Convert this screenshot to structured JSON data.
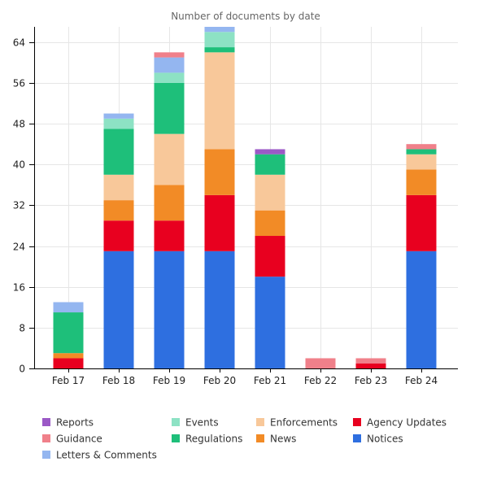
{
  "chart_data": {
    "type": "bar",
    "stacked": true,
    "title": "Number of documents by date",
    "xlabel": "",
    "ylabel": "",
    "categories": [
      "Feb 17",
      "Feb 18",
      "Feb 19",
      "Feb 20",
      "Feb 21",
      "Feb 22",
      "Feb 23",
      "Feb 24"
    ],
    "ylim": [
      0,
      67
    ],
    "yticks": [
      0,
      8,
      16,
      24,
      32,
      40,
      48,
      56,
      64
    ],
    "grid": true,
    "legend_position": "bottom",
    "series": [
      {
        "name": "Notices",
        "color": "#2e6fe0",
        "values": [
          0,
          23,
          23,
          23,
          18,
          0,
          0,
          23
        ]
      },
      {
        "name": "Agency Updates",
        "color": "#e8001f",
        "values": [
          2,
          6,
          6,
          11,
          8,
          0,
          1,
          11
        ]
      },
      {
        "name": "News",
        "color": "#f28b26",
        "values": [
          1,
          4,
          7,
          9,
          5,
          0,
          0,
          5
        ]
      },
      {
        "name": "Enforcements",
        "color": "#f8c89a",
        "values": [
          0,
          5,
          10,
          19,
          7,
          0,
          0,
          3
        ]
      },
      {
        "name": "Regulations",
        "color": "#1ebf7a",
        "values": [
          8,
          9,
          10,
          1,
          4,
          0,
          0,
          1
        ]
      },
      {
        "name": "Events",
        "color": "#8de2c4",
        "values": [
          0,
          2,
          2,
          3,
          0,
          0,
          0,
          0
        ]
      },
      {
        "name": "Letters & Comments",
        "color": "#94b6f0",
        "values": [
          2,
          1,
          3,
          2,
          0,
          0,
          0,
          0
        ]
      },
      {
        "name": "Guidance",
        "color": "#f0808a",
        "values": [
          0,
          0,
          1,
          0,
          0,
          2,
          1,
          1
        ]
      },
      {
        "name": "Reports",
        "color": "#9b59c6",
        "values": [
          0,
          0,
          0,
          0,
          1,
          0,
          0,
          0
        ]
      }
    ],
    "legend_order": [
      "Reports",
      "Events",
      "Enforcements",
      "Agency Updates",
      "Guidance",
      "Regulations",
      "News",
      "Notices",
      "Letters & Comments"
    ]
  }
}
